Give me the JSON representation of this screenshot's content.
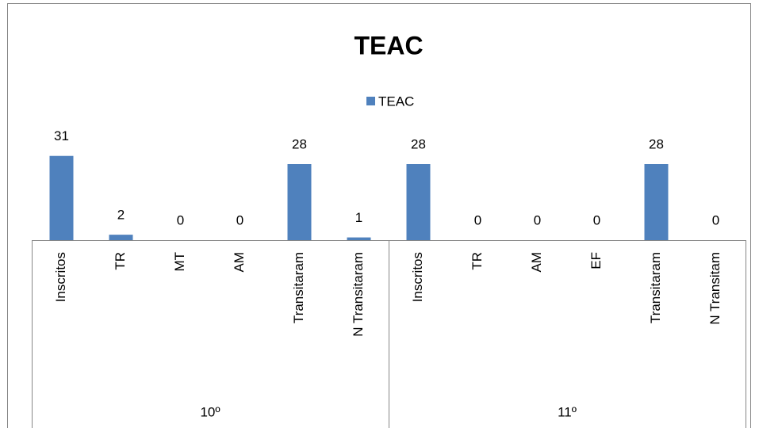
{
  "chart_data": {
    "type": "bar",
    "title": "TEAC",
    "categories": [
      "Inscritos",
      "TR",
      "MT",
      "AM",
      "Transitaram",
      "N Transitaram",
      "Inscritos",
      "TR",
      "AM",
      "EF",
      "Transitaram",
      "N Transitam"
    ],
    "groups": [
      {
        "name": "10º",
        "span": 6
      },
      {
        "name": "11º",
        "span": 6
      }
    ],
    "series": [
      {
        "name": "TEAC",
        "color": "#4f81bd",
        "values": [
          31,
          2,
          0,
          0,
          28,
          1,
          28,
          0,
          0,
          0,
          28,
          0
        ]
      }
    ],
    "ylim": [
      0,
      35
    ],
    "legend": "top"
  }
}
